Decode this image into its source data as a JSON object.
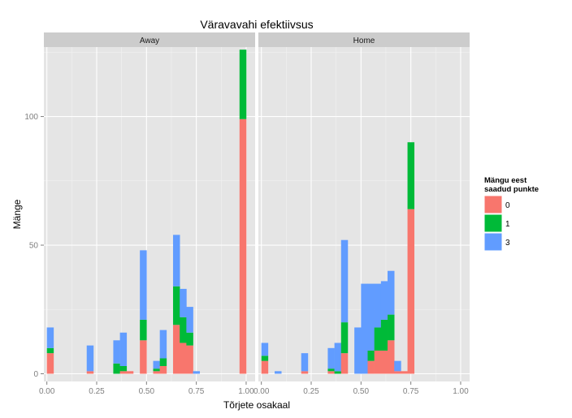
{
  "chart_data": {
    "type": "bar",
    "stacked": true,
    "title": "Väravavahi efektiivsus",
    "xlabel": "Tõrjete osakaal",
    "ylabel": "Mänge",
    "xlim": [
      -0.015,
      1.045
    ],
    "ylim": [
      -3,
      127
    ],
    "x_ticks": [
      0,
      0.25,
      0.5,
      0.75,
      1
    ],
    "x_tick_labels": [
      "0.00",
      "0.25",
      "0.50",
      "0.75",
      "1.00"
    ],
    "y_ticks": [
      0,
      50,
      100
    ],
    "y_tick_labels": [
      "0",
      "50",
      "100"
    ],
    "grid": true,
    "bin_width": 0.0333,
    "bin_starts": [
      0,
      0.0333,
      0.0667,
      0.1,
      0.1333,
      0.1667,
      0.2,
      0.2333,
      0.2667,
      0.3,
      0.3333,
      0.3667,
      0.4,
      0.4333,
      0.4667,
      0.5,
      0.5333,
      0.5667,
      0.6,
      0.6333,
      0.6667,
      0.7,
      0.7333,
      0.7667,
      0.8,
      0.8333,
      0.8667,
      0.9,
      0.9333,
      0.9667
    ],
    "legend": {
      "title_lines": [
        "Mängu eest",
        "saadud punkte"
      ],
      "position": "right",
      "items": [
        {
          "label": "0",
          "color": "#F8766D"
        },
        {
          "label": "1",
          "color": "#00BA38"
        },
        {
          "label": "3",
          "color": "#619CFF"
        }
      ]
    },
    "panels": [
      {
        "label": "Away",
        "series": [
          {
            "category": "0",
            "values": [
              8,
              0,
              0,
              0,
              0,
              0,
              1,
              0,
              0,
              0,
              0,
              1,
              1,
              0,
              13,
              0,
              1,
              3,
              0,
              19,
              12,
              11,
              0,
              0,
              0,
              0,
              0,
              0,
              0,
              99
            ]
          },
          {
            "category": "1",
            "values": [
              2,
              0,
              0,
              0,
              0,
              0,
              0,
              0,
              0,
              0,
              4,
              2,
              0,
              0,
              8,
              0,
              1,
              3,
              0,
              15,
              10,
              5,
              0,
              0,
              0,
              0,
              0,
              0,
              0,
              27
            ]
          },
          {
            "category": "3",
            "values": [
              8,
              0,
              0,
              0,
              0,
              0,
              10,
              0,
              0,
              0,
              9,
              13,
              0,
              0,
              27,
              0,
              3,
              11,
              0,
              20,
              11,
              10,
              1,
              0,
              0,
              0,
              0,
              0,
              0,
              0
            ]
          }
        ]
      },
      {
        "label": "Home",
        "series": [
          {
            "category": "0",
            "values": [
              5,
              0,
              0,
              0,
              0,
              0,
              1,
              0,
              0,
              0,
              1,
              0,
              8,
              0,
              0,
              0,
              5,
              9,
              9,
              13,
              1,
              1,
              64,
              0,
              0,
              0,
              0,
              0,
              0,
              0
            ]
          },
          {
            "category": "1",
            "values": [
              2,
              0,
              0,
              0,
              0,
              0,
              0,
              0,
              0,
              0,
              1,
              1,
              12,
              0,
              0,
              0,
              4,
              9,
              12,
              10,
              0,
              0,
              26,
              0,
              0,
              0,
              0,
              0,
              0,
              0
            ]
          },
          {
            "category": "3",
            "values": [
              5,
              0,
              1,
              0,
              0,
              0,
              7,
              0,
              0,
              0,
              8,
              11,
              32,
              0,
              18,
              35,
              26,
              17,
              15,
              17,
              4,
              0,
              0,
              0,
              0,
              0,
              0,
              0,
              0,
              0
            ]
          }
        ]
      }
    ]
  }
}
